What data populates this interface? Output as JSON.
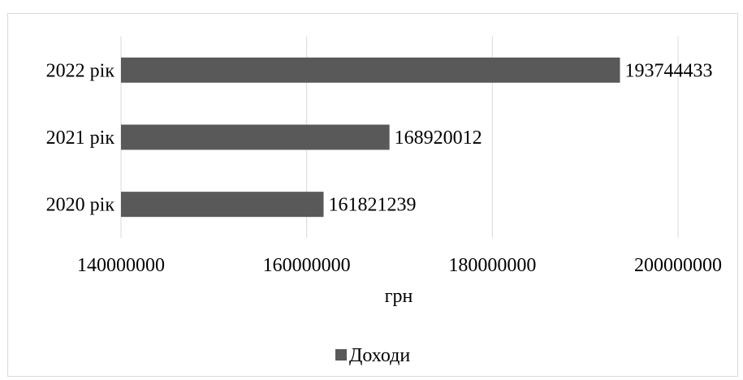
{
  "chart_data": {
    "type": "bar",
    "orientation": "horizontal",
    "categories": [
      "2020 рік",
      "2021 рік",
      "2022 рік"
    ],
    "series": [
      {
        "name": "Доходи",
        "values": [
          161821239,
          168920012,
          193744433
        ],
        "color": "#595959"
      }
    ],
    "data_labels": [
      "161821239",
      "168920012",
      "193744433"
    ],
    "xlabel": "грн",
    "ylabel": "",
    "xlim": [
      140000000,
      200000000
    ],
    "x_ticks": [
      140000000,
      160000000,
      180000000,
      200000000
    ],
    "x_tick_labels": [
      "140000000",
      "160000000",
      "180000000",
      "200000000"
    ],
    "grid": "vertical",
    "legend_position": "bottom",
    "gridline_color": "#d9d9d9"
  }
}
